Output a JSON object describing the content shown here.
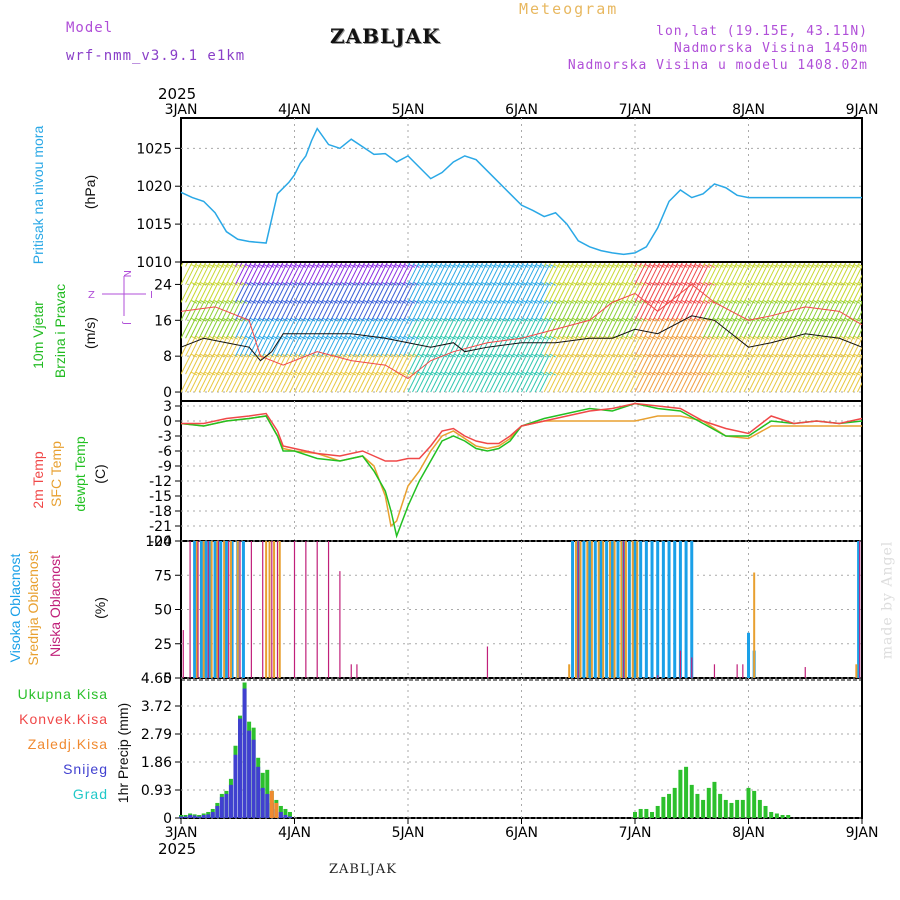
{
  "header": {
    "model_label": "Model",
    "model_name": "wrf-nmm_v3.9.1  e1km",
    "title": "ZABLJAK",
    "meteogram": "Meteogram",
    "coords": "lon,lat (19.15E, 43.11N)",
    "elevation": "Nadmorska Visina 1450m",
    "model_elevation": "Nadmorska Visina u modelu 1408.02m"
  },
  "footer_station": "ZABLJAK",
  "watermark": "made by Angel",
  "colors": {
    "pressure": "#2aa8e6",
    "wind_label": "#22bb22",
    "t2m": "#f04848",
    "sfc": "#e8a030",
    "dew": "#22c022",
    "high_cloud": "#1aa0e8",
    "mid_cloud": "#e8a030",
    "low_cloud": "#c0207a",
    "rain": "#2cc02c",
    "conv": "#f04848",
    "frz": "#f08a30",
    "snow": "#4040d0",
    "hail": "#20c8c8",
    "windblack": "#111111"
  },
  "chart_data": [
    {
      "type": "line",
      "panel": "pressure",
      "labels": [
        "Pritisak na nivou mora",
        "(hPa)"
      ],
      "x_ticks": [
        "3JAN",
        "4JAN",
        "5JAN",
        "6JAN",
        "7JAN",
        "8JAN",
        "9JAN"
      ],
      "x_top_year": "2025",
      "ylim": [
        1010,
        1029
      ],
      "y_ticks": [
        "1010",
        "1015",
        "1020",
        "1025"
      ],
      "grid": true,
      "series": [
        {
          "x": [
            0,
            0.1,
            0.2,
            0.3,
            0.4,
            0.5,
            0.6,
            0.75,
            0.85,
            0.95,
            1.0,
            1.05,
            1.1,
            1.15,
            1.2,
            1.3,
            1.4,
            1.5,
            1.6,
            1.7,
            1.8,
            1.9,
            2.0,
            2.1,
            2.2,
            2.3,
            2.4,
            2.5,
            2.6,
            2.7,
            2.8,
            2.9,
            3.0,
            3.1,
            3.2,
            3.3,
            3.4,
            3.5,
            3.6,
            3.7,
            3.8,
            3.9,
            4.0,
            4.1,
            4.2,
            4.3,
            4.4,
            4.5,
            4.6,
            4.7,
            4.8,
            4.9,
            5.0,
            5.1,
            5.2,
            5.3,
            5.4,
            5.5,
            5.6,
            5.7,
            5.8,
            5.9,
            6.0
          ],
          "values": [
            1019.2,
            1018.5,
            1018.0,
            1016.5,
            1014.0,
            1013.0,
            1012.7,
            1012.5,
            1019.0,
            1020.5,
            1021.5,
            1023.0,
            1024.0,
            1026.0,
            1027.6,
            1025.5,
            1025.0,
            1026.2,
            1025.2,
            1024.2,
            1024.3,
            1023.2,
            1024.0,
            1022.5,
            1021.0,
            1021.8,
            1023.2,
            1024.0,
            1023.5,
            1022.0,
            1020.5,
            1019.0,
            1017.5,
            1016.8,
            1016.0,
            1016.5,
            1015.0,
            1012.8,
            1012.0,
            1011.5,
            1011.2,
            1011.0,
            1011.2,
            1012.0,
            1014.5,
            1018.0,
            1019.5,
            1018.5,
            1019.0,
            1020.3,
            1019.8,
            1018.8,
            1018.5,
            1018.5,
            1018.5,
            1018.5,
            1018.5,
            1018.5,
            1018.5,
            1018.5,
            1018.5,
            1018.5,
            1018.5
          ]
        }
      ]
    },
    {
      "type": "line",
      "panel": "wind",
      "labels": [
        "10m Vjetar",
        "Brzina i Pravac",
        "(m/s)"
      ],
      "ylim": [
        -2,
        29
      ],
      "y_ticks": [
        "0",
        "8",
        "16",
        "24"
      ],
      "compass": [
        "N",
        "Z",
        "I",
        "J"
      ],
      "grid": true,
      "series": [
        {
          "name": "speed",
          "x": [
            0,
            0.2,
            0.4,
            0.6,
            0.7,
            0.8,
            0.9,
            1.0,
            1.2,
            1.5,
            1.8,
            2.0,
            2.2,
            2.4,
            2.5,
            2.7,
            3.0,
            3.3,
            3.6,
            3.8,
            4.0,
            4.2,
            4.5,
            4.7,
            5.0,
            5.2,
            5.5,
            5.8,
            6.0
          ],
          "values": [
            10,
            12,
            11,
            10,
            7,
            9,
            13,
            13,
            13,
            13,
            12,
            11,
            10,
            11,
            9,
            10,
            11,
            11,
            12,
            12,
            14,
            13,
            17,
            16,
            10,
            11,
            13,
            12,
            10
          ]
        },
        {
          "name": "gust",
          "x": [
            0,
            0.3,
            0.6,
            0.7,
            0.9,
            1.2,
            1.5,
            1.8,
            2.0,
            2.2,
            2.4,
            2.7,
            3.0,
            3.3,
            3.6,
            3.8,
            4.0,
            4.2,
            4.5,
            4.7,
            5.0,
            5.2,
            5.5,
            5.8,
            6.0
          ],
          "values": [
            18,
            19,
            16,
            8,
            6,
            9,
            7,
            6,
            3,
            7,
            9,
            11,
            12,
            14,
            16,
            20,
            22,
            18,
            24,
            20,
            16,
            17,
            19,
            18,
            15
          ]
        }
      ]
    },
    {
      "type": "line",
      "panel": "temperature",
      "labels": [
        "2m Temp",
        "SFC Temp",
        "dewpt Temp",
        "(C)"
      ],
      "ylim": [
        -24,
        4
      ],
      "y_ticks": [
        "3",
        "0",
        "-3",
        "-6",
        "-9",
        "-12",
        "-15",
        "-18",
        "-21",
        "-24"
      ],
      "grid": true,
      "series": [
        {
          "name": "2m",
          "x": [
            0,
            0.2,
            0.4,
            0.6,
            0.75,
            0.85,
            0.9,
            1.0,
            1.2,
            1.4,
            1.6,
            1.7,
            1.8,
            1.9,
            2.0,
            2.1,
            2.2,
            2.3,
            2.4,
            2.5,
            2.6,
            2.7,
            2.8,
            2.9,
            3.0,
            3.2,
            3.4,
            3.6,
            3.8,
            4.0,
            4.2,
            4.4,
            4.6,
            4.8,
            5.0,
            5.2,
            5.4,
            5.6,
            5.8,
            6.0
          ],
          "values": [
            -0.5,
            -0.5,
            0.5,
            1.0,
            1.5,
            -2,
            -5,
            -5.5,
            -6.5,
            -7,
            -6,
            -7,
            -8,
            -8,
            -7.5,
            -7.5,
            -5,
            -2,
            -1.5,
            -3,
            -4,
            -4.5,
            -4.5,
            -3,
            -1,
            0,
            1,
            2,
            2.5,
            3.5,
            3,
            2.5,
            0,
            -1.5,
            -2.5,
            1,
            -0.5,
            0,
            -0.5,
            0.5
          ]
        },
        {
          "name": "sfc",
          "x": [
            0,
            0.2,
            0.4,
            0.6,
            0.75,
            0.85,
            0.9,
            1.0,
            1.2,
            1.4,
            1.6,
            1.7,
            1.8,
            1.85,
            1.9,
            2.0,
            2.1,
            2.2,
            2.3,
            2.4,
            2.5,
            2.6,
            2.7,
            2.8,
            2.9,
            3.0,
            3.2,
            3.4,
            3.6,
            3.8,
            4.0,
            4.2,
            4.4,
            4.6,
            4.8,
            5.0,
            5.2,
            5.4,
            5.6,
            5.8,
            6.0
          ],
          "values": [
            -0.5,
            -1,
            0,
            0.5,
            1,
            -3,
            -5.5,
            -6,
            -6.5,
            -8,
            -7,
            -9,
            -15,
            -21,
            -20,
            -13,
            -10,
            -6,
            -3,
            -2,
            -3.5,
            -5,
            -5.5,
            -5,
            -3.5,
            -1,
            0,
            0,
            0,
            0,
            0,
            1,
            1,
            0,
            -3,
            -3.5,
            -1,
            -1,
            -1,
            -1,
            -1
          ]
        },
        {
          "name": "dew",
          "x": [
            0,
            0.2,
            0.4,
            0.6,
            0.75,
            0.85,
            0.9,
            1.0,
            1.2,
            1.4,
            1.6,
            1.7,
            1.8,
            1.85,
            1.9,
            2.0,
            2.1,
            2.2,
            2.3,
            2.4,
            2.5,
            2.6,
            2.7,
            2.8,
            2.9,
            3.0,
            3.2,
            3.4,
            3.6,
            3.8,
            4.0,
            4.2,
            4.4,
            4.6,
            4.8,
            5.0,
            5.2,
            5.4,
            5.6,
            5.8,
            6.0
          ],
          "values": [
            -0.5,
            -1,
            0,
            0.5,
            1,
            -3,
            -6,
            -6,
            -7.5,
            -8,
            -7,
            -10,
            -14,
            -18,
            -23,
            -17,
            -12,
            -8,
            -4,
            -3,
            -4,
            -5.5,
            -6,
            -5.5,
            -4,
            -1,
            0.5,
            1.5,
            2.5,
            2,
            3.5,
            2.5,
            2,
            -0.5,
            -3,
            -3,
            0,
            -0.5,
            0,
            -0.5,
            0
          ]
        }
      ]
    },
    {
      "type": "bar",
      "panel": "clouds",
      "labels": [
        "Visoka Oblacnost",
        "Srednja Oblacnost",
        "Niska Oblacnost",
        "(%)"
      ],
      "ylim": [
        0,
        100
      ],
      "y_ticks": [
        "0",
        "25",
        "50",
        "75",
        "100"
      ],
      "grid": true,
      "series": [
        {
          "name": "Visoka Oblacnost",
          "x": [
            0.12,
            0.18,
            0.22,
            0.25,
            0.3,
            0.35,
            0.4,
            0.45,
            0.5,
            0.55,
            3.45,
            3.5,
            3.55,
            3.6,
            3.65,
            3.7,
            3.75,
            3.8,
            3.85,
            3.9,
            3.95,
            4.0,
            4.05,
            4.1,
            4.15,
            4.2,
            4.25,
            4.3,
            4.35,
            4.4,
            4.45,
            4.5,
            5.0,
            5.05,
            5.97
          ],
          "values": [
            100,
            100,
            100,
            100,
            100,
            100,
            100,
            100,
            100,
            100,
            100,
            100,
            100,
            100,
            100,
            100,
            100,
            100,
            100,
            100,
            100,
            100,
            100,
            100,
            100,
            100,
            100,
            100,
            100,
            100,
            100,
            100,
            33,
            20,
            100
          ]
        },
        {
          "name": "Srednja Oblacnost",
          "x": [
            0.14,
            0.2,
            0.27,
            0.32,
            0.38,
            0.44,
            0.5,
            0.75,
            0.78,
            0.82,
            0.87,
            3.42,
            3.48,
            3.52,
            3.58,
            3.62,
            3.68,
            3.72,
            3.78,
            3.82,
            3.88,
            3.92,
            3.98,
            4.02,
            5.05,
            5.95
          ],
          "values": [
            100,
            100,
            100,
            100,
            100,
            100,
            100,
            100,
            100,
            100,
            100,
            10,
            100,
            100,
            100,
            100,
            100,
            100,
            100,
            100,
            100,
            100,
            100,
            100,
            77,
            10
          ]
        },
        {
          "name": "Niska Oblacnost",
          "x": [
            0.02,
            0.08,
            0.15,
            0.24,
            0.33,
            0.42,
            0.52,
            0.62,
            0.72,
            0.8,
            0.85,
            1.0,
            1.1,
            1.2,
            1.3,
            1.4,
            1.5,
            1.55,
            2.7,
            3.5,
            3.9,
            4.2,
            4.4,
            4.5,
            4.7,
            4.9,
            4.95,
            5.5,
            5.98
          ],
          "values": [
            35,
            100,
            100,
            100,
            100,
            100,
            100,
            100,
            100,
            100,
            100,
            100,
            100,
            100,
            100,
            78,
            10,
            10,
            23,
            100,
            100,
            2,
            20,
            15,
            10,
            10,
            10,
            8,
            100
          ]
        }
      ]
    },
    {
      "type": "bar",
      "panel": "precipitation",
      "labels": [
        "Ukupna Kisa",
        "Konvek.Kisa",
        "Zaledj.Kisa",
        "Snijeg",
        "Grad",
        "1hr Precip (mm)"
      ],
      "ylim": [
        0,
        4.65
      ],
      "y_ticks": [
        "0",
        "0.93",
        "1.86",
        "2.79",
        "3.72",
        "4.65"
      ],
      "x_ticks": [
        "3JAN",
        "4JAN",
        "5JAN",
        "6JAN",
        "7JAN",
        "8JAN",
        "9JAN"
      ],
      "x_bottom_year": "2025",
      "grid": true,
      "series": [
        {
          "name": "Ukupna Kisa",
          "x": [
            0.0,
            0.04,
            0.08,
            0.12,
            0.16,
            0.2,
            0.24,
            0.28,
            0.32,
            0.36,
            0.4,
            0.44,
            0.48,
            0.52,
            0.56,
            0.6,
            0.64,
            0.68,
            0.72,
            0.76,
            0.8,
            0.84,
            0.88,
            0.92,
            0.96,
            4.0,
            4.05,
            4.1,
            4.15,
            4.2,
            4.25,
            4.3,
            4.35,
            4.4,
            4.45,
            4.5,
            4.55,
            4.6,
            4.65,
            4.7,
            4.75,
            4.8,
            4.85,
            4.9,
            4.95,
            5.0,
            5.05,
            5.1,
            5.15,
            5.2,
            5.25,
            5.3,
            5.35
          ],
          "values": [
            0.1,
            0.1,
            0.15,
            0.12,
            0.1,
            0.15,
            0.2,
            0.3,
            0.5,
            0.8,
            0.9,
            1.3,
            2.4,
            3.4,
            4.5,
            3.2,
            3.0,
            2.0,
            1.5,
            1.6,
            0.9,
            0.6,
            0.4,
            0.3,
            0.2,
            0.2,
            0.3,
            0.3,
            0.2,
            0.4,
            0.7,
            0.8,
            1.0,
            1.6,
            1.7,
            1.1,
            0.8,
            0.6,
            1.0,
            1.2,
            0.8,
            0.6,
            0.5,
            0.6,
            0.6,
            1.0,
            0.9,
            0.6,
            0.4,
            0.2,
            0.15,
            0.1,
            0.1
          ]
        },
        {
          "name": "Snijeg",
          "x": [
            0.0,
            0.04,
            0.08,
            0.12,
            0.16,
            0.2,
            0.24,
            0.28,
            0.32,
            0.36,
            0.4,
            0.44,
            0.48,
            0.52,
            0.56,
            0.6,
            0.64,
            0.68,
            0.72,
            0.76,
            0.8,
            0.84,
            0.88,
            0.92,
            0.96
          ],
          "values": [
            0.05,
            0.05,
            0.1,
            0.08,
            0.05,
            0.1,
            0.12,
            0.2,
            0.4,
            0.7,
            0.8,
            1.1,
            2.1,
            3.3,
            4.3,
            2.9,
            2.6,
            1.7,
            1.0,
            0.8,
            0.5,
            0.3,
            0.2,
            0.1,
            0.05
          ]
        },
        {
          "name": "Zaledj.Kisa",
          "x": [
            0.8,
            0.84
          ],
          "values": [
            0.9,
            0.5
          ]
        }
      ]
    }
  ]
}
